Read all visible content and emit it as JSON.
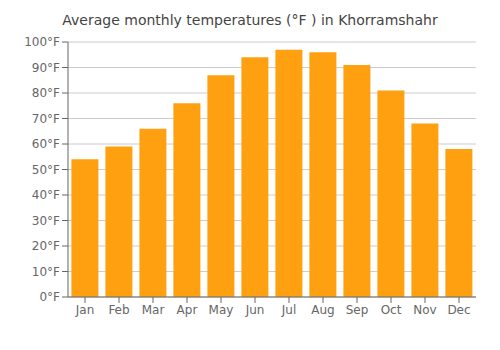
{
  "chart_data": {
    "type": "bar",
    "title": "Average monthly temperatures (°F ) in Khorramshahr",
    "categories": [
      "Jan",
      "Feb",
      "Mar",
      "Apr",
      "May",
      "Jun",
      "Jul",
      "Aug",
      "Sep",
      "Oct",
      "Nov",
      "Dec"
    ],
    "values": [
      54,
      59,
      66,
      76,
      87,
      94,
      97,
      96,
      91,
      81,
      68,
      58
    ],
    "color": "#FFA010",
    "ylim": [
      0,
      100
    ],
    "yticks": [
      {
        "value": 0,
        "label": "0°F"
      },
      {
        "value": 10,
        "label": "10°F"
      },
      {
        "value": 20,
        "label": "20°F"
      },
      {
        "value": 30,
        "label": "30°F"
      },
      {
        "value": 40,
        "label": "40°F"
      },
      {
        "value": 50,
        "label": "50°F"
      },
      {
        "value": 60,
        "label": "60°F"
      },
      {
        "value": 70,
        "label": "70°F"
      },
      {
        "value": 80,
        "label": "80°F"
      },
      {
        "value": 90,
        "label": "90°F"
      },
      {
        "value": 100,
        "label": "100°F"
      }
    ],
    "grid": true
  }
}
